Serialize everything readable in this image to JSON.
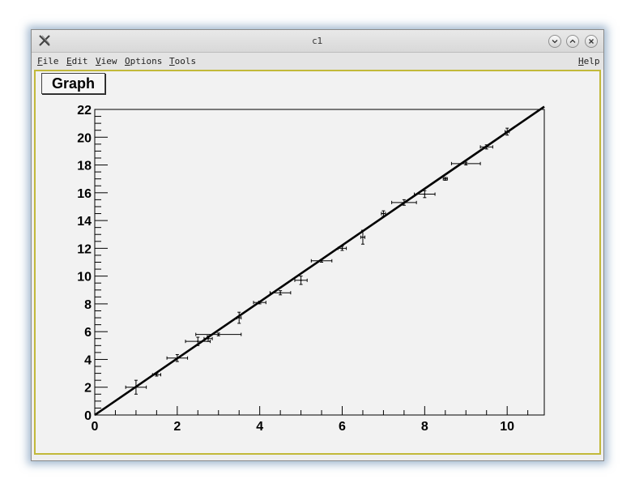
{
  "window": {
    "title": "c1",
    "buttons": [
      "minimize",
      "maximize",
      "close"
    ]
  },
  "menu": {
    "file": "File",
    "edit": "Edit",
    "view": "View",
    "options": "Options",
    "tools": "Tools",
    "help": "Help"
  },
  "canvas": {
    "label": "Graph"
  },
  "chart_data": {
    "type": "scatter",
    "title": "Graph",
    "xlabel": "",
    "ylabel": "",
    "xlim": [
      0,
      10.9
    ],
    "ylim": [
      0,
      22
    ],
    "x_ticks": [
      0,
      2,
      4,
      6,
      8,
      10
    ],
    "y_ticks": [
      0,
      2,
      4,
      6,
      8,
      10,
      12,
      14,
      16,
      18,
      20,
      22
    ],
    "grid": false,
    "points": [
      {
        "x": 1.0,
        "y": 2.0,
        "ex": 0.25,
        "ey": 0.5
      },
      {
        "x": 1.5,
        "y": 2.9,
        "ex": 0.1,
        "ey": 0.1
      },
      {
        "x": 2.0,
        "y": 4.1,
        "ex": 0.25,
        "ey": 0.25
      },
      {
        "x": 2.5,
        "y": 5.3,
        "ex": 0.3,
        "ey": 0.3
      },
      {
        "x": 2.75,
        "y": 5.5,
        "ex": 0.1,
        "ey": 0.2
      },
      {
        "x": 3.0,
        "y": 5.8,
        "ex": 0.55,
        "ey": 0.1
      },
      {
        "x": 3.5,
        "y": 7.0,
        "ex": 0.05,
        "ey": 0.4
      },
      {
        "x": 4.0,
        "y": 8.1,
        "ex": 0.15,
        "ey": 0.1
      },
      {
        "x": 4.5,
        "y": 8.8,
        "ex": 0.25,
        "ey": 0.15
      },
      {
        "x": 5.0,
        "y": 9.7,
        "ex": 0.15,
        "ey": 0.3
      },
      {
        "x": 5.5,
        "y": 11.1,
        "ex": 0.25,
        "ey": 0.1
      },
      {
        "x": 6.0,
        "y": 12.0,
        "ex": 0.1,
        "ey": 0.15
      },
      {
        "x": 6.5,
        "y": 12.8,
        "ex": 0.05,
        "ey": 0.5
      },
      {
        "x": 7.0,
        "y": 14.5,
        "ex": 0.05,
        "ey": 0.2
      },
      {
        "x": 7.5,
        "y": 15.3,
        "ex": 0.3,
        "ey": 0.2
      },
      {
        "x": 8.0,
        "y": 15.9,
        "ex": 0.25,
        "ey": 0.25
      },
      {
        "x": 8.5,
        "y": 17.0,
        "ex": 0.05,
        "ey": 0.1
      },
      {
        "x": 9.0,
        "y": 18.1,
        "ex": 0.35,
        "ey": 0.1
      },
      {
        "x": 9.5,
        "y": 19.3,
        "ex": 0.15,
        "ey": 0.15
      },
      {
        "x": 10.0,
        "y": 20.4,
        "ex": 0.05,
        "ey": 0.25
      }
    ],
    "fit_line": {
      "x": [
        0,
        10.9
      ],
      "y": [
        0,
        22.2
      ]
    }
  }
}
